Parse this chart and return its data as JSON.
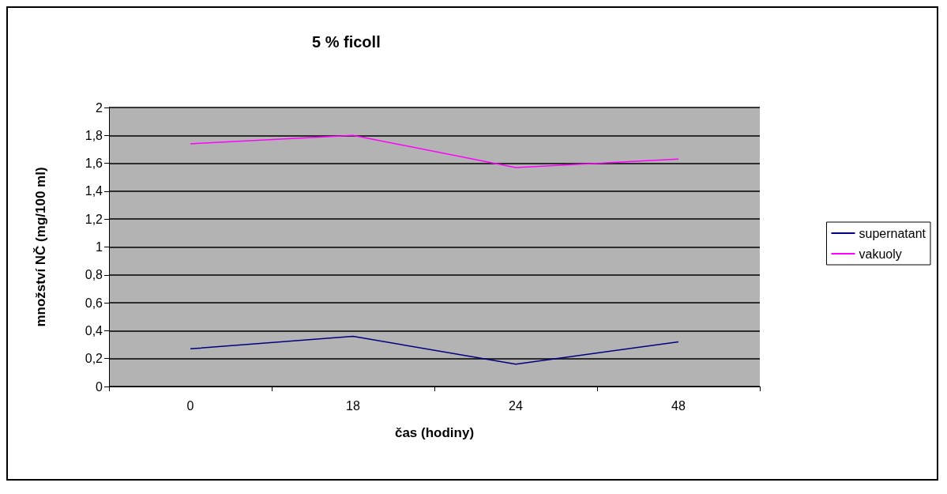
{
  "chart_data": {
    "type": "line",
    "title": "5 % ficoll",
    "xlabel": "čas (hodiny)",
    "ylabel": "množství NČ (mg/100 ml)",
    "categories": [
      "0",
      "18",
      "24",
      "48"
    ],
    "series": [
      {
        "name": "supernatant",
        "color": "#000080",
        "values": [
          0.27,
          0.36,
          0.16,
          0.32
        ]
      },
      {
        "name": "vakuoly",
        "color": "#ff00ff",
        "values": [
          1.74,
          1.8,
          1.57,
          1.63
        ]
      }
    ],
    "ylim": [
      0,
      2
    ],
    "yticks": [
      0,
      {
        "value": 0.2,
        "label": "0,2"
      },
      {
        "value": 0.4,
        "label": "0,4"
      },
      {
        "value": 0.6,
        "label": "0,6"
      },
      {
        "value": 0.8,
        "label": "0,8"
      },
      1,
      {
        "value": 1.2,
        "label": "1,2"
      },
      {
        "value": 1.4,
        "label": "1,4"
      },
      {
        "value": 1.6,
        "label": "1,6"
      },
      {
        "value": 1.8,
        "label": "1,8"
      },
      2
    ],
    "grid": "y",
    "legend": "right",
    "marker": "none",
    "line_style": "solid"
  }
}
